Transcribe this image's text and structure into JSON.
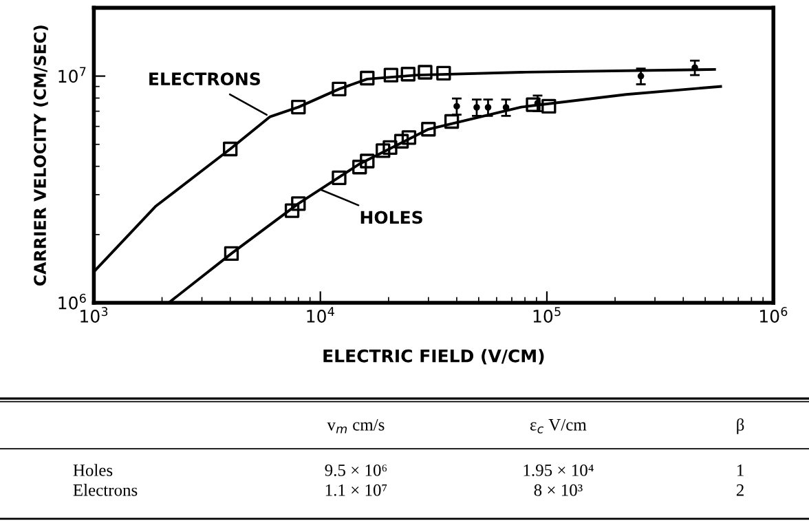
{
  "chart_data": {
    "type": "scatter",
    "xlabel": "ELECTRIC FIELD (V/CM)",
    "ylabel": "CARRIER VELOCITY (CM/SEC)",
    "log": "xy",
    "xlim": [
      1000,
      1000000
    ],
    "ylim": [
      1000000,
      20000000
    ],
    "xticks": [
      {
        "value": 1000,
        "label": "10$^{3}$"
      },
      {
        "value": 10000,
        "label": "10$^{4}$"
      },
      {
        "value": 100000,
        "label": "10$^{5}$"
      },
      {
        "value": 1000000,
        "label": "10$^{6}$"
      }
    ],
    "yticks": [
      {
        "value": 1000000,
        "label": "10$^{6}$"
      },
      {
        "value": 10000000,
        "label": "10$^{7}$"
      }
    ],
    "grid": false,
    "legend": false,
    "series": [
      {
        "type": "line",
        "color": "#000000",
        "marker": "none",
        "line_style": "solid",
        "x": [
          1000,
          1870,
          4000,
          6000,
          8000,
          12100,
          16100,
          26700,
          77000,
          550000
        ],
        "values": [
          1370000,
          2660000,
          4770000,
          6620000,
          7300000,
          8770000,
          9700000,
          10100000,
          10400000,
          10700000
        ]
      },
      {
        "type": "line",
        "color": "#000000",
        "marker": "none",
        "line_style": "solid",
        "x": [
          2140,
          4050,
          8000,
          14900,
          30000,
          77000,
          224000,
          585000
        ],
        "values": [
          1000000,
          1650000,
          2740000,
          4100000,
          5830000,
          7300000,
          8300000,
          9000000
        ]
      },
      {
        "color": "#000000",
        "marker": "square",
        "x": [
          4000,
          8000,
          12100,
          16100,
          20500,
          24400,
          29000,
          35000
        ],
        "values": [
          4770000,
          7300000,
          8770000,
          9800000,
          10100000,
          10200000,
          10400000,
          10300000
        ]
      },
      {
        "color": "#000000",
        "marker": "square",
        "x": [
          4050,
          7500,
          8000,
          12100,
          14900,
          16100,
          18900,
          20300,
          22800,
          24600,
          30000,
          38000,
          87000,
          102000
        ],
        "values": [
          1650000,
          2550000,
          2740000,
          3560000,
          3970000,
          4220000,
          4690000,
          4840000,
          5160000,
          5360000,
          5830000,
          6310000,
          7480000,
          7360000
        ]
      },
      {
        "color": "#000000",
        "marker": "circle",
        "x": [
          260000,
          450000
        ],
        "values": [
          10000000,
          10900000
        ],
        "errors": [
          800000,
          800000
        ]
      },
      {
        "color": "#000000",
        "marker": "circle",
        "x": [
          40000,
          49000,
          55000,
          66000,
          91000
        ],
        "values": [
          7360000,
          7280000,
          7280000,
          7280000,
          7600000
        ],
        "errors": [
          600000,
          600000,
          600000,
          600000,
          600000
        ]
      }
    ],
    "annotations": [
      {
        "text": "ELECTRONS",
        "x": 6000,
        "y": 6620000
      },
      {
        "text": "HOLES",
        "x": 9700,
        "y": 3200000
      },
      "v$_{m}$ cm/s",
      "ε$_{c}$ V/cm",
      "β",
      "Holes",
      "9.5 × 10⁶",
      "1.95 × 10⁴",
      "1",
      "Electrons",
      "1.1 × 10⁷",
      "8 × 10³",
      "2"
    ]
  }
}
